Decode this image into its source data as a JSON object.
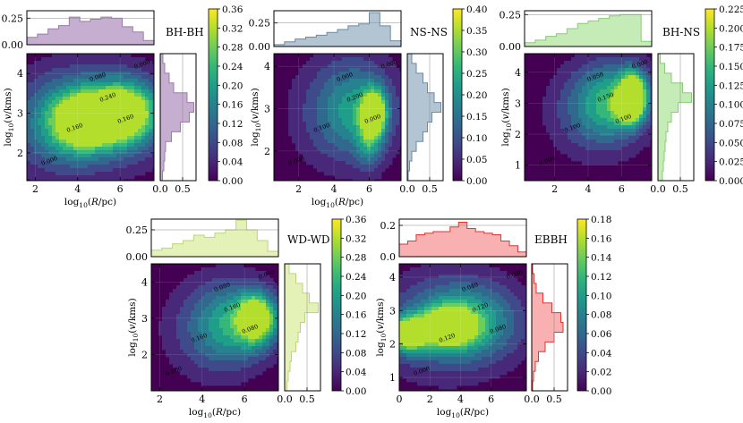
{
  "panels": [
    {
      "id": "bh-bh",
      "name": "BH-BH",
      "hist_color": "#c5aed0",
      "hist_edge": "#9b7bab",
      "xlabel": "log$_{10}$(R/pc)",
      "ylabel": "log$_{10}$(v/kms)",
      "xlim": [
        1.6,
        7.6
      ],
      "ylim": [
        1.3,
        4.5
      ],
      "xticks": [
        2,
        4,
        6
      ],
      "yticks": [
        2,
        3,
        4
      ],
      "top_hist": {
        "ylim": [
          0,
          0.32
        ],
        "yticks": [
          "0.00",
          "0.25"
        ],
        "values": [
          0.07,
          0.1,
          0.15,
          0.18,
          0.26,
          0.22,
          0.24,
          0.26,
          0.25,
          0.17,
          0.12,
          0.04
        ]
      },
      "side_hist": {
        "xlim": [
          0,
          0.8
        ],
        "xticks": [
          "0.0",
          "0.5"
        ],
        "values": [
          0.05,
          0.08,
          0.1,
          0.12,
          0.25,
          0.45,
          0.65,
          0.75,
          0.6,
          0.3,
          0.2,
          0.1,
          0.06
        ]
      },
      "colorbar": {
        "ticks": [
          "0.00",
          "0.04",
          "0.08",
          "0.12",
          "0.16",
          "0.20",
          "0.24",
          "0.28",
          "0.32",
          "0.36"
        ]
      },
      "contour_labels": [
        "0.240",
        "0.160",
        "0.160",
        "0.080",
        "0.000",
        "0.000"
      ]
    },
    {
      "id": "ns-ns",
      "name": "NS-NS",
      "hist_color": "#b3c4d3",
      "hist_edge": "#6e8aa3",
      "xlabel": "log$_{10}$(R/pc)",
      "ylabel": "log$_{10}$(v/kms)",
      "xlim": [
        0.6,
        7.8
      ],
      "ylim": [
        1.3,
        4.3
      ],
      "xticks": [
        2,
        4,
        6
      ],
      "yticks": [
        2,
        3,
        4
      ],
      "top_hist": {
        "ylim": [
          0,
          0.38
        ],
        "yticks": [
          "0.00",
          "0.25"
        ],
        "values": [
          0.02,
          0.05,
          0.08,
          0.1,
          0.12,
          0.15,
          0.18,
          0.22,
          0.24,
          0.36,
          0.22,
          0.06
        ]
      },
      "side_hist": {
        "xlim": [
          0,
          0.8
        ],
        "xticks": [
          "0.0",
          "0.5"
        ],
        "values": [
          0.02,
          0.05,
          0.1,
          0.2,
          0.35,
          0.45,
          0.55,
          0.75,
          0.6,
          0.45,
          0.35,
          0.2,
          0.1
        ]
      },
      "colorbar": {
        "ticks": [
          "0.00",
          "0.05",
          "0.10",
          "0.15",
          "0.20",
          "0.25",
          "0.30",
          "0.35",
          "0.40"
        ]
      },
      "contour_labels": [
        "0.200",
        "0.100",
        "0.000",
        "0.000",
        "0.000",
        "0.000"
      ]
    },
    {
      "id": "bh-ns",
      "name": "BH-NS",
      "hist_color": "#c5ecb6",
      "hist_edge": "#88cc76",
      "xlabel": "",
      "ylabel": "log$_{10}$(v/kms)",
      "xlim": [
        0.2,
        7.8
      ],
      "ylim": [
        0.5,
        4.6
      ],
      "xticks": [
        2,
        4,
        6
      ],
      "yticks": [
        1,
        2,
        3,
        4
      ],
      "top_hist": {
        "ylim": [
          0,
          0.28
        ],
        "yticks": [
          "0.00",
          "0.25"
        ],
        "values": [
          0.03,
          0.05,
          0.08,
          0.1,
          0.14,
          0.18,
          0.2,
          0.22,
          0.24,
          0.25,
          0.25,
          0.04
        ]
      },
      "side_hist": {
        "xlim": [
          0,
          0.8
        ],
        "xticks": [
          "0.0",
          "0.5"
        ],
        "values": [
          0.1,
          0.12,
          0.14,
          0.16,
          0.18,
          0.22,
          0.3,
          0.45,
          0.75,
          0.55,
          0.3,
          0.15,
          0.05
        ]
      },
      "colorbar": {
        "ticks": [
          "0.000",
          "0.025",
          "0.050",
          "0.075",
          "0.100",
          "0.125",
          "0.150",
          "0.175",
          "0.200",
          "0.225"
        ]
      },
      "contour_labels": [
        "0.150",
        "0.100",
        "0.100",
        "0.050",
        "0.000",
        "0.000"
      ]
    },
    {
      "id": "wd-wd",
      "name": "WD-WD",
      "hist_color": "#e4f2b8",
      "hist_edge": "#b9d77a",
      "xlabel": "log$_{10}$(R/pc)",
      "ylabel": "log$_{10}$(v/kms)",
      "xlim": [
        1.6,
        7.6
      ],
      "ylim": [
        1.0,
        4.5
      ],
      "xticks": [
        2,
        4,
        6
      ],
      "yticks": [
        2,
        3,
        4
      ],
      "top_hist": {
        "ylim": [
          0,
          0.35
        ],
        "yticks": [
          "0.00",
          "0.25"
        ],
        "values": [
          0.06,
          0.08,
          0.12,
          0.15,
          0.2,
          0.18,
          0.22,
          0.25,
          0.34,
          0.25,
          0.15,
          0.05
        ]
      },
      "side_hist": {
        "xlim": [
          0,
          0.8
        ],
        "xticks": [
          "0.0",
          "0.5"
        ],
        "values": [
          0.05,
          0.08,
          0.12,
          0.15,
          0.25,
          0.3,
          0.35,
          0.45,
          0.75,
          0.55,
          0.4,
          0.25,
          0.1
        ]
      },
      "colorbar": {
        "ticks": [
          "0.00",
          "0.04",
          "0.08",
          "0.12",
          "0.16",
          "0.20",
          "0.24",
          "0.28",
          "0.32",
          "0.36"
        ]
      },
      "contour_labels": [
        "0.160",
        "0.160",
        "0.080",
        "0.080",
        "0.000",
        "0.000"
      ]
    },
    {
      "id": "ebbh",
      "name": "EBBH",
      "hist_color": "#f9b0b0",
      "hist_edge": "#e03535",
      "xlabel": "log$_{10}$(R/pc)",
      "ylabel": "log$_{10}$(v/kms)",
      "xlim": [
        0,
        8.3
      ],
      "ylim": [
        0.6,
        4.4
      ],
      "xticks": [
        0,
        2,
        4,
        6
      ],
      "yticks": [
        1,
        2,
        3,
        4
      ],
      "top_hist": {
        "ylim": [
          0,
          0.24
        ],
        "yticks": [
          "0.0",
          "0.2"
        ],
        "values": [
          0.08,
          0.1,
          0.14,
          0.15,
          0.16,
          0.16,
          0.19,
          0.22,
          0.18,
          0.16,
          0.15,
          0.14,
          0.1,
          0.07,
          0.03
        ]
      },
      "side_hist": {
        "xlim": [
          0,
          0.8
        ],
        "xticks": [
          "0.0",
          "0.5"
        ],
        "values": [
          0.02,
          0.04,
          0.08,
          0.15,
          0.3,
          0.5,
          0.7,
          0.65,
          0.45,
          0.25,
          0.1,
          0.05,
          0.02
        ]
      },
      "colorbar": {
        "ticks": [
          "0.00",
          "0.02",
          "0.04",
          "0.06",
          "0.08",
          "0.10",
          "0.12",
          "0.14",
          "0.16",
          "0.18"
        ]
      },
      "contour_labels": [
        "0.120",
        "0.120",
        "0.080",
        "0.040",
        "0.000",
        "0.000"
      ]
    }
  ],
  "chart_data": [
    {
      "type": "heatmap",
      "title": "BH-BH",
      "xlabel": "log10(R/pc)",
      "ylabel": "log10(v/kms)",
      "xlim": [
        1.6,
        7.6
      ],
      "ylim": [
        1.3,
        4.5
      ],
      "peaks": [
        {
          "x": 4.3,
          "y": 2.8,
          "density": 0.24
        },
        {
          "x": 6.2,
          "y": 3.0,
          "density": 0.26
        }
      ]
    },
    {
      "type": "heatmap",
      "title": "NS-NS",
      "xlabel": "log10(R/pc)",
      "ylabel": "log10(v/kms)",
      "xlim": [
        0.6,
        7.8
      ],
      "ylim": [
        1.3,
        4.3
      ],
      "peaks": [
        {
          "x": 6.3,
          "y": 2.9,
          "density": 0.32
        }
      ]
    },
    {
      "type": "heatmap",
      "title": "BH-NS",
      "xlabel": "",
      "ylabel": "log10(v/kms)",
      "xlim": [
        0.2,
        7.8
      ],
      "ylim": [
        0.5,
        4.6
      ],
      "peaks": [
        {
          "x": 6.7,
          "y": 3.3,
          "density": 0.21
        }
      ]
    },
    {
      "type": "heatmap",
      "title": "WD-WD",
      "xlabel": "log10(R/pc)",
      "ylabel": "log10(v/kms)",
      "xlim": [
        1.6,
        7.6
      ],
      "ylim": [
        1.0,
        4.5
      ],
      "peaks": [
        {
          "x": 6.6,
          "y": 3.0,
          "density": 0.32
        }
      ]
    },
    {
      "type": "heatmap",
      "title": "EBBH",
      "xlabel": "log10(R/pc)",
      "ylabel": "log10(v/kms)",
      "xlim": [
        0,
        8.3
      ],
      "ylim": [
        0.6,
        4.4
      ],
      "peaks": [
        {
          "x": 0.5,
          "y": 2.3,
          "density": 0.17
        },
        {
          "x": 3.2,
          "y": 2.5,
          "density": 0.14
        }
      ]
    }
  ]
}
